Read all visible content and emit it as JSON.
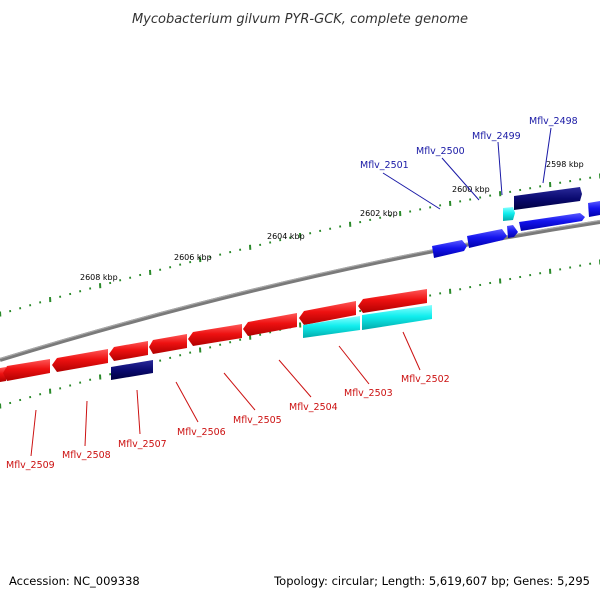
{
  "title": "Mycobacterium gilvum PYR-GCK, complete genome",
  "footer": {
    "accession": "Accession: NC_009338",
    "summary": "Topology: circular; Length: 5,619,607 bp; Genes: 5,295"
  },
  "colors": {
    "forward_gene": "#1414ee",
    "reverse_gene": "#ee1111",
    "rna_gene": "#11eeee",
    "pseudo_gene": "#0a0a70",
    "backbone": "#808080",
    "ticks": "#2a8a2a"
  },
  "scale_labels": [
    "2598 kbp",
    "2600 kbp",
    "2602 kbp",
    "2604 kbp",
    "2606 kbp",
    "2608 kbp"
  ],
  "forward_labels": [
    "Mflv_2498",
    "Mflv_2499",
    "Mflv_2500",
    "Mflv_2501"
  ],
  "reverse_labels": [
    "Mflv_2502",
    "Mflv_2503",
    "Mflv_2504",
    "Mflv_2505",
    "Mflv_2506",
    "Mflv_2507",
    "Mflv_2508",
    "Mflv_2509"
  ]
}
